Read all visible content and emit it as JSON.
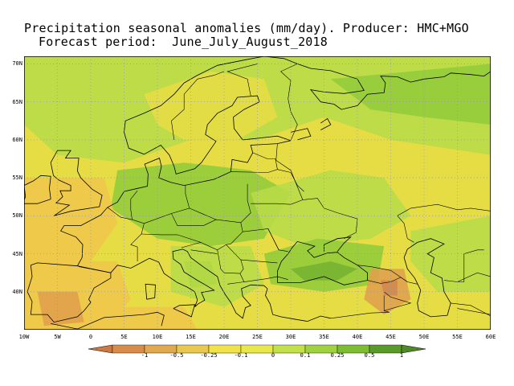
{
  "title": {
    "line1": "Precipitation seasonal anomalies (mm/day). Producer: HMC+MGO",
    "line2": "Forecast period:  June_July_August_2018"
  },
  "map": {
    "lat_range": [
      35,
      71
    ],
    "lon_range": [
      -10,
      60
    ],
    "grid": true,
    "projection": "lat-lon",
    "lat_ticks": [
      {
        "v": 40,
        "label": "40N"
      },
      {
        "v": 45,
        "label": "45N"
      },
      {
        "v": 50,
        "label": "50N"
      },
      {
        "v": 55,
        "label": "55N"
      },
      {
        "v": 60,
        "label": "60N"
      },
      {
        "v": 65,
        "label": "65N"
      },
      {
        "v": 70,
        "label": "70N"
      }
    ],
    "lon_ticks": [
      {
        "v": -10,
        "label": "10W"
      },
      {
        "v": -5,
        "label": "5W"
      },
      {
        "v": 0,
        "label": "0"
      },
      {
        "v": 5,
        "label": "5E"
      },
      {
        "v": 10,
        "label": "10E"
      },
      {
        "v": 15,
        "label": "15E"
      },
      {
        "v": 20,
        "label": "20E"
      },
      {
        "v": 25,
        "label": "25E"
      },
      {
        "v": 30,
        "label": "30E"
      },
      {
        "v": 35,
        "label": "35E"
      },
      {
        "v": 40,
        "label": "40E"
      },
      {
        "v": 45,
        "label": "45E"
      },
      {
        "v": 50,
        "label": "50E"
      },
      {
        "v": 55,
        "label": "55E"
      },
      {
        "v": 60,
        "label": "60E"
      }
    ]
  },
  "legend": {
    "labels": [
      "-1",
      "-0.5",
      "-0.25",
      "-0.1",
      "0",
      "0.1",
      "0.25",
      "0.5",
      "1"
    ],
    "colors": [
      "#d98b4a",
      "#e0a84f",
      "#e8c84f",
      "#f2e24a",
      "#e8e84a",
      "#c2e04a",
      "#9fd23e",
      "#7cbd32",
      "#5a9a2a"
    ],
    "under_color": "#cc7a45",
    "over_color": "#4f8a26"
  },
  "colors": {
    "neutral": "#e6dd45",
    "wet_light": "#b8dc48",
    "wet": "#93cc3a",
    "wet_strong": "#78b432",
    "dry_light": "#f0c84a",
    "dry": "#e0a14d",
    "dry_strong": "#d08a50",
    "coast": "#000000",
    "grid": "#909090"
  }
}
